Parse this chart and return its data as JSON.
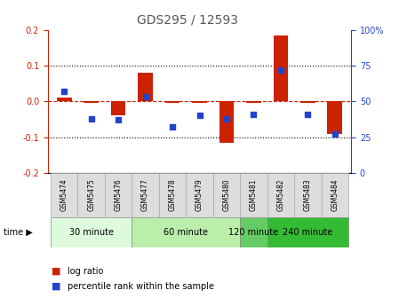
{
  "title": "GDS295 / 12593",
  "samples": [
    "GSM5474",
    "GSM5475",
    "GSM5476",
    "GSM5477",
    "GSM5478",
    "GSM5479",
    "GSM5480",
    "GSM5481",
    "GSM5482",
    "GSM5483",
    "GSM5484"
  ],
  "log_ratio": [
    0.01,
    -0.005,
    -0.04,
    0.08,
    -0.005,
    -0.005,
    -0.115,
    -0.005,
    0.185,
    -0.005,
    -0.09
  ],
  "percentile": [
    57,
    38,
    37,
    53,
    32,
    40,
    38,
    41,
    72,
    41,
    27
  ],
  "ylim_left": [
    -0.2,
    0.2
  ],
  "ylim_right": [
    0,
    100
  ],
  "left_ticks": [
    -0.2,
    -0.1,
    0.0,
    0.1,
    0.2
  ],
  "right_ticks": [
    0,
    25,
    50,
    75,
    100
  ],
  "bar_color": "#cc2200",
  "dot_color": "#2244cc",
  "bar_width": 0.55,
  "hline_color": "#cc2200",
  "title_color": "#555555",
  "left_tick_color": "#cc2200",
  "right_tick_color": "#2244cc",
  "group_spans": [
    [
      0,
      2,
      "30 minute",
      "#ddfadd"
    ],
    [
      3,
      6,
      "60 minute",
      "#bbeeaa"
    ],
    [
      7,
      7,
      "120 minute",
      "#66cc66"
    ],
    [
      8,
      10,
      "240 minute",
      "#33bb33"
    ]
  ]
}
